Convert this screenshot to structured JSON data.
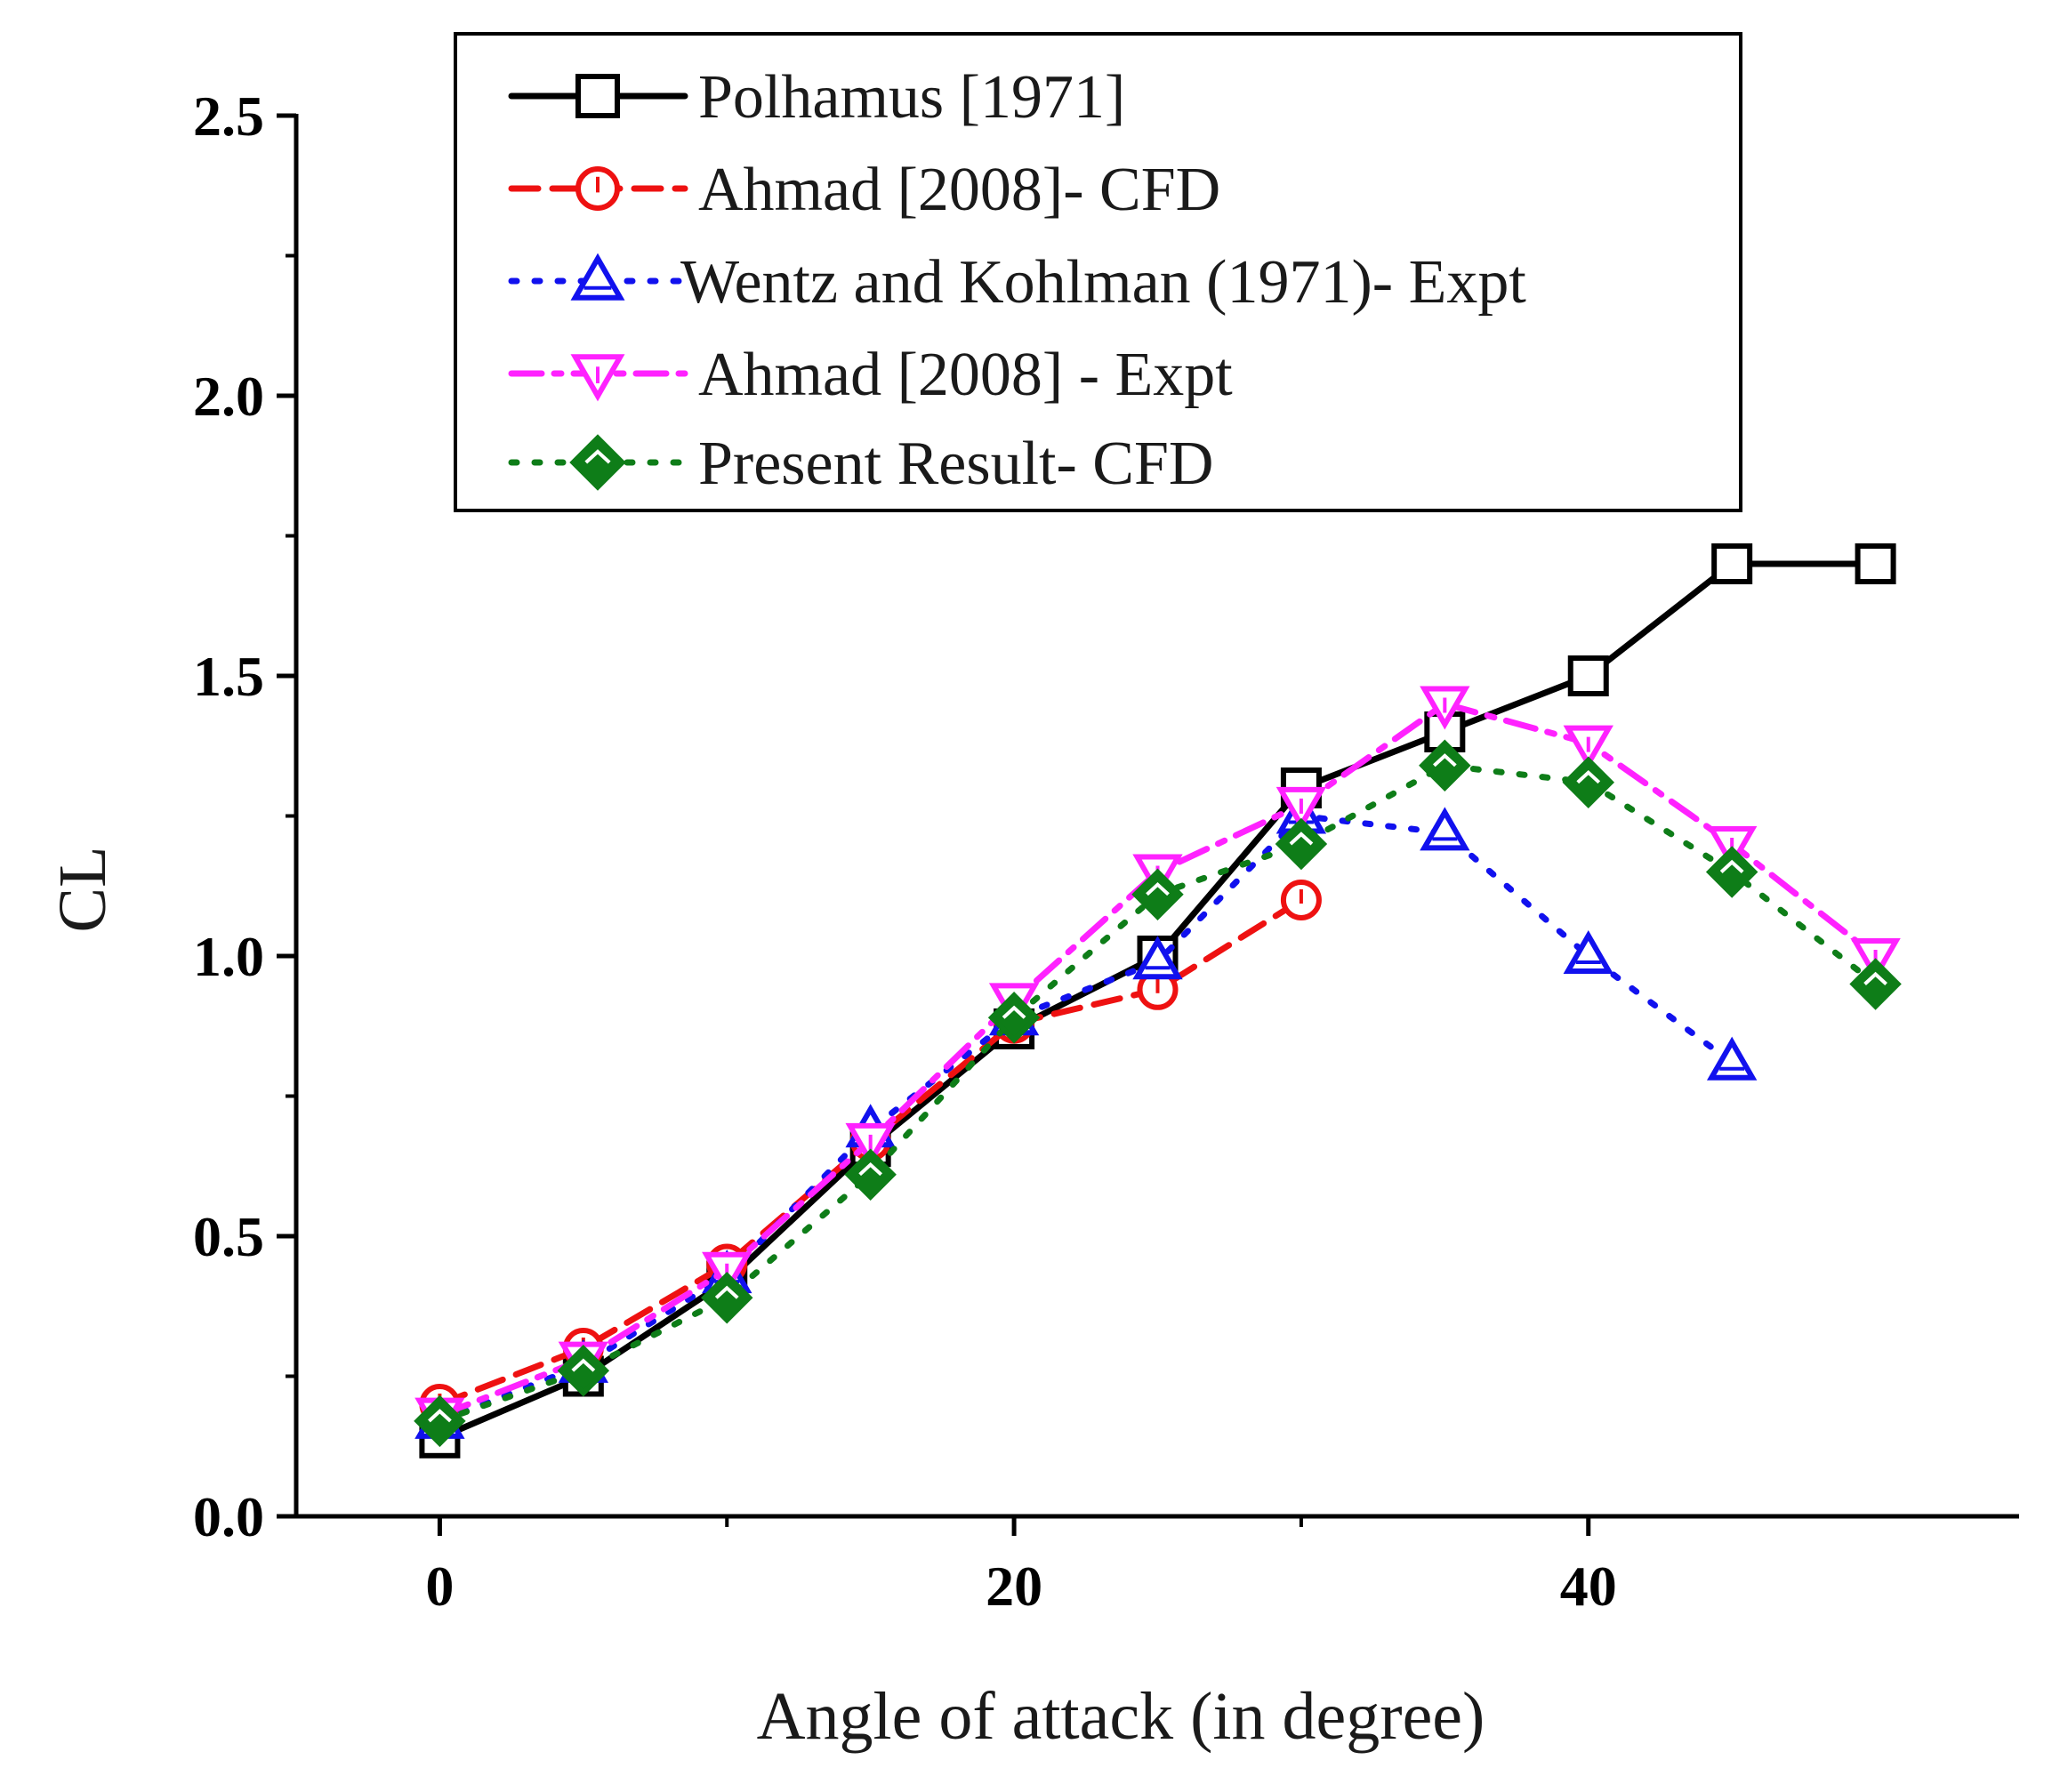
{
  "chart_data": {
    "type": "line",
    "title": "",
    "xlabel": "Angle of attack (in degree)",
    "ylabel": "CL",
    "xlim": [
      -5,
      55
    ],
    "ylim": [
      0,
      2.5
    ],
    "xticks": [
      0,
      20,
      40
    ],
    "xtick_labels": [
      "0",
      "20",
      "40"
    ],
    "yticks": [
      0,
      0.5,
      1.0,
      1.5,
      2.0,
      2.5
    ],
    "ytick_labels": [
      "0.0",
      "0.5",
      "1.0",
      "1.5",
      "2.0",
      "2.5"
    ],
    "grid": false,
    "legend_position": "top",
    "series": [
      {
        "name": "Polhamus [1971]",
        "color": "#000000",
        "line_style": "solid",
        "marker": "square",
        "marker_fill": "none",
        "x": [
          0,
          5,
          10,
          15,
          20,
          25,
          30,
          35,
          40,
          45,
          50
        ],
        "y": [
          0.14,
          0.25,
          0.42,
          0.66,
          0.87,
          1.0,
          1.3,
          1.4,
          1.5,
          1.7,
          1.7
        ]
      },
      {
        "name": "Ahmad [2008]- CFD",
        "color": "#ee1111",
        "line_style": "dashed",
        "marker": "circle",
        "marker_fill": "none",
        "x": [
          0,
          5,
          10,
          15,
          20,
          25,
          30
        ],
        "y": [
          0.2,
          0.3,
          0.45,
          0.67,
          0.88,
          0.94,
          1.1
        ]
      },
      {
        "name": "Wentz and Kohlman (1971)- Expt",
        "color": "#1111ee",
        "line_style": "dotted",
        "marker": "triangle-up",
        "marker_fill": "none",
        "x": [
          0,
          5,
          10,
          15,
          20,
          25,
          30,
          35,
          40,
          45
        ],
        "y": [
          0.17,
          0.27,
          0.43,
          0.69,
          0.89,
          0.99,
          1.25,
          1.22,
          1.0,
          0.81
        ]
      },
      {
        "name": "Ahmad [2008] - Expt",
        "color": "#ff22ff",
        "line_style": "dashdot",
        "marker": "triangle-down",
        "marker_fill": "none",
        "x": [
          0,
          5,
          10,
          15,
          20,
          25,
          30,
          35,
          40,
          45,
          50
        ],
        "y": [
          0.18,
          0.28,
          0.44,
          0.67,
          0.92,
          1.15,
          1.27,
          1.45,
          1.38,
          1.2,
          1.0
        ]
      },
      {
        "name": "Present Result- CFD",
        "color": "#0e7d18",
        "line_style": "dotted",
        "marker": "diamond",
        "marker_fill": "#0e7d18",
        "x": [
          0,
          5,
          10,
          15,
          20,
          25,
          30,
          35,
          40,
          45,
          50
        ],
        "y": [
          0.17,
          0.26,
          0.39,
          0.61,
          0.89,
          1.11,
          1.2,
          1.34,
          1.31,
          1.15,
          0.95
        ]
      }
    ]
  }
}
